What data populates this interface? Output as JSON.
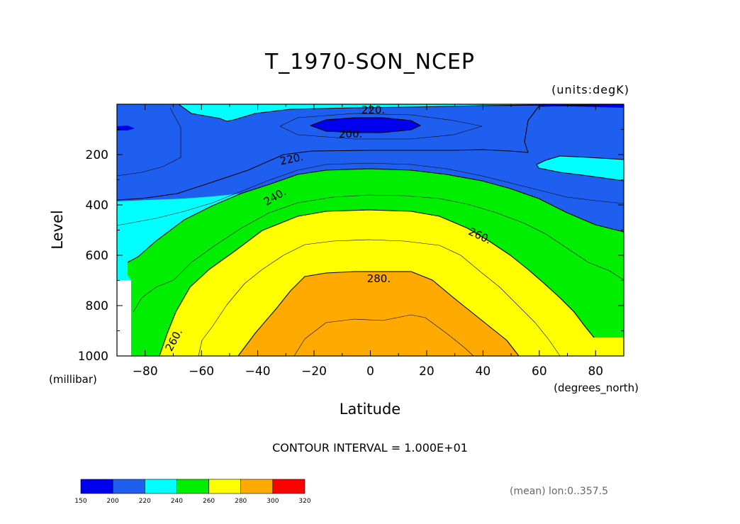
{
  "chart_data": {
    "type": "contour",
    "title": "T_1970-SON_NCEP",
    "units_label": "(units:degK)",
    "xlabel": "Latitude",
    "x_units": "(degrees_north)",
    "ylabel": "Level",
    "y_units": "(millibar)",
    "xlim": [
      -90,
      90
    ],
    "ylim": [
      1000,
      0
    ],
    "x_ticks": [
      -80,
      -60,
      -40,
      -20,
      0,
      20,
      40,
      60,
      80
    ],
    "x_tick_labels": [
      "−80",
      "−60",
      "−40",
      "−20",
      "0",
      "20",
      "40",
      "60",
      "80"
    ],
    "y_ticks": [
      200,
      400,
      600,
      800,
      1000
    ],
    "y_tick_labels": [
      "200",
      "400",
      "600",
      "800",
      "1000"
    ],
    "contour_interval_text": "CONTOUR INTERVAL = 1.000E+01",
    "footnote": "(mean) lon:0..357.5",
    "contour_labels": [
      {
        "text": "220.",
        "lat": 1,
        "level": 20
      },
      {
        "text": "200.",
        "lat": -7,
        "level": 115
      },
      {
        "text": "220.",
        "lat": -28,
        "level": 215
      },
      {
        "text": "240.",
        "lat": -34,
        "level": 365
      },
      {
        "text": "260.",
        "lat": 39,
        "level": 520
      },
      {
        "text": "280.",
        "lat": 3,
        "level": 690
      },
      {
        "text": "260.",
        "lat": -70,
        "level": 935
      }
    ],
    "colorbar": {
      "bounds": [
        150,
        200,
        220,
        240,
        260,
        280,
        300,
        320
      ],
      "labels": [
        "150",
        "200",
        "220",
        "240",
        "260",
        "280",
        "300",
        "320"
      ],
      "colors": [
        "#0000ee",
        "#1f5fef",
        "#00ffff",
        "#00ee00",
        "#ffff00",
        "#ffaa00",
        "#ff0000"
      ]
    }
  }
}
